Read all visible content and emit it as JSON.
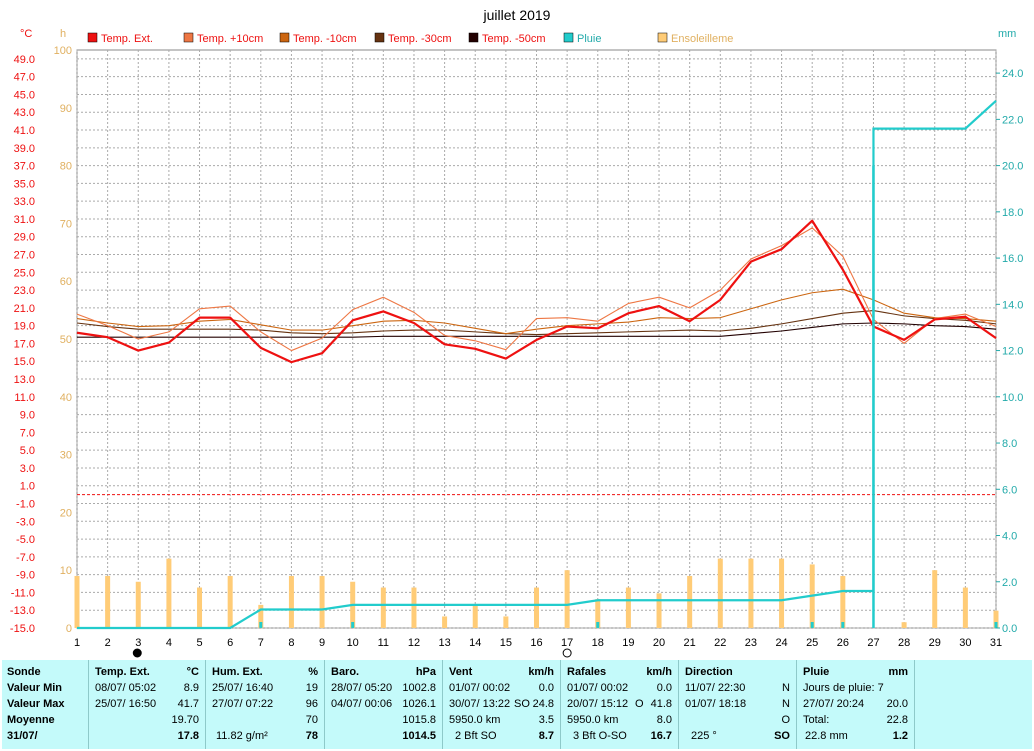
{
  "chart_data": {
    "type": "line",
    "title": "juillet 2019",
    "axes": {
      "temp_unit": "°C",
      "hours_unit": "h",
      "rain_unit": "mm",
      "temp_range": [
        -15,
        50
      ],
      "hours_range": [
        0,
        100
      ],
      "rain_range": [
        0,
        25
      ],
      "temp_ticks": [
        "49.0",
        "47.0",
        "45.0",
        "43.0",
        "41.0",
        "39.0",
        "37.0",
        "35.0",
        "33.0",
        "31.0",
        "29.0",
        "27.0",
        "25.0",
        "23.0",
        "21.0",
        "19.0",
        "17.0",
        "15.0",
        "13.0",
        "11.0",
        "9.0",
        "7.0",
        "5.0",
        "3.0",
        "1.0",
        "-1.0",
        "-3.0",
        "-5.0",
        "-7.0",
        "-9.0",
        "-11.0",
        "-13.0",
        "-15.0"
      ],
      "hours_ticks": [
        "100",
        "90",
        "80",
        "70",
        "60",
        "50",
        "40",
        "30",
        "20",
        "10",
        "0"
      ],
      "rain_ticks": [
        "24.0",
        "22.0",
        "20.0",
        "18.0",
        "16.0",
        "14.0",
        "12.0",
        "10.0",
        "8.0",
        "6.0",
        "4.0",
        "2.0",
        "0.0"
      ],
      "x_ticks": [
        "1",
        "2",
        "3",
        "4",
        "5",
        "6",
        "7",
        "8",
        "9",
        "10",
        "11",
        "12",
        "13",
        "14",
        "15",
        "16",
        "17",
        "18",
        "19",
        "20",
        "21",
        "22",
        "23",
        "24",
        "25",
        "26",
        "27",
        "28",
        "29",
        "30",
        "31"
      ],
      "grid": true,
      "reference_temp": 0
    },
    "legend": [
      "Temp. Ext.",
      "Temp. +10cm",
      "Temp. -10cm",
      "Temp. -30cm",
      "Temp. -50cm",
      "Pluie",
      "Ensoleilleme"
    ],
    "x": [
      1,
      2,
      3,
      4,
      5,
      6,
      7,
      8,
      9,
      10,
      11,
      12,
      13,
      14,
      15,
      16,
      17,
      18,
      19,
      20,
      21,
      22,
      23,
      24,
      25,
      26,
      27,
      28,
      29,
      30,
      31
    ],
    "series": [
      {
        "name": "Temp. Ext.",
        "color": "#ee1111",
        "axis": "temp",
        "values": [
          18.2,
          17.7,
          16.2,
          17.1,
          19.9,
          19.9,
          16.5,
          14.9,
          15.9,
          19.6,
          20.6,
          19.3,
          16.9,
          16.4,
          15.3,
          17.4,
          18.9,
          18.7,
          20.4,
          21.2,
          19.5,
          21.9,
          26.2,
          27.6,
          30.8,
          25.3,
          18.9,
          17.4,
          19.7,
          20.0,
          17.6
        ]
      },
      {
        "name": "Temp. +10cm",
        "color": "#ee7744",
        "axis": "temp",
        "values": [
          20.3,
          19.0,
          17.5,
          18.3,
          20.9,
          21.2,
          18.3,
          16.2,
          17.6,
          20.8,
          22.2,
          20.5,
          17.9,
          17.3,
          16.3,
          19.8,
          19.9,
          19.5,
          21.5,
          22.2,
          21.0,
          23.0,
          26.5,
          28.0,
          30.0,
          26.8,
          19.7,
          17.0,
          19.8,
          20.3,
          18.9
        ]
      },
      {
        "name": "Temp. -10cm",
        "color": "#cc6611",
        "axis": "temp",
        "values": [
          19.8,
          19.3,
          18.9,
          19.0,
          19.5,
          19.7,
          19.1,
          18.5,
          18.5,
          19.0,
          19.5,
          19.6,
          19.3,
          18.7,
          18.1,
          18.6,
          19.0,
          19.2,
          19.4,
          19.9,
          19.8,
          19.9,
          20.9,
          21.9,
          22.7,
          23.1,
          21.9,
          20.4,
          19.9,
          19.8,
          19.5
        ]
      },
      {
        "name": "Temp. -30cm",
        "color": "#663311",
        "axis": "temp",
        "values": [
          19.3,
          18.9,
          18.6,
          18.6,
          18.6,
          18.6,
          18.5,
          18.2,
          18.1,
          18.2,
          18.4,
          18.5,
          18.5,
          18.3,
          18.1,
          18.0,
          18.1,
          18.2,
          18.3,
          18.4,
          18.5,
          18.4,
          18.7,
          19.2,
          19.8,
          20.4,
          20.7,
          20.1,
          19.8,
          19.6,
          19.2
        ]
      },
      {
        "name": "Temp. -50cm",
        "color": "#220000",
        "axis": "temp",
        "values": [
          17.7,
          17.7,
          17.7,
          17.7,
          17.7,
          17.7,
          17.7,
          17.7,
          17.7,
          17.7,
          17.8,
          17.8,
          17.8,
          17.8,
          17.8,
          17.8,
          17.8,
          17.8,
          17.8,
          17.8,
          17.8,
          17.8,
          18.1,
          18.4,
          18.8,
          19.2,
          19.3,
          19.2,
          19.0,
          18.9,
          18.6
        ]
      },
      {
        "name": "Pluie",
        "color": "#22cccc",
        "axis": "rain",
        "values": [
          0.0,
          0.0,
          0.0,
          0.0,
          0.0,
          0.0,
          0.8,
          0.8,
          0.8,
          1.0,
          1.0,
          1.0,
          1.0,
          1.0,
          1.0,
          1.0,
          1.0,
          1.2,
          1.2,
          1.2,
          1.2,
          1.2,
          1.2,
          1.2,
          1.4,
          1.6,
          21.6,
          21.6,
          21.6,
          21.6,
          22.8
        ]
      },
      {
        "name": "Ensoleilleme",
        "color": "#ffcc77",
        "axis": "hours",
        "type": "bar",
        "values": [
          9,
          9,
          8,
          12,
          7,
          9,
          4,
          9,
          9,
          8,
          7,
          7,
          2,
          4,
          2,
          7,
          10,
          5,
          7,
          6,
          9,
          12,
          12,
          12,
          11,
          9,
          0,
          1,
          10,
          7,
          3
        ]
      }
    ],
    "daily_rain_mm": [
      0,
      0,
      0,
      0,
      0,
      0,
      0.8,
      0,
      0,
      0.2,
      0,
      0,
      0,
      0,
      0,
      0,
      0,
      0.2,
      0,
      0,
      0,
      0,
      0,
      0,
      0.2,
      0.2,
      20.0,
      0,
      0,
      0,
      1.2
    ]
  },
  "footer": {
    "sonde": {
      "title": "Sonde",
      "rows": [
        "Valeur Min",
        "Valeur Max",
        "Moyenne",
        "31/07/"
      ]
    },
    "temp": {
      "title": "Temp. Ext.",
      "unit": "°C",
      "min_when": "08/07/  05:02",
      "min": "8.9",
      "max_when": "25/07/  16:50",
      "max": "41.7",
      "avg": "19.70",
      "cur": "17.8"
    },
    "hum": {
      "title": "Hum. Ext.",
      "unit": "%",
      "min_when": "25/07/  16:40",
      "min": "19",
      "max_when": "27/07/  07:22",
      "max": "96",
      "avg": "70",
      "cur_extra": "11.82 g/m²",
      "cur": "78"
    },
    "baro": {
      "title": "Baro.",
      "unit": "hPa",
      "min_when": "28/07/  05:20",
      "min": "1002.8",
      "max_when": "04/07/  00:06",
      "max": "1026.1",
      "avg": "1015.8",
      "cur": "1014.5"
    },
    "vent": {
      "title": "Vent",
      "unit": "km/h",
      "min_when": "01/07/  00:02",
      "min": "0.0",
      "max_when": "30/07/  13:22",
      "max_dir": "SO",
      "max": "24.8",
      "avg_extra": "5950.0 km",
      "avg": "3.5",
      "cur_extra": "2 Bft SO",
      "cur": "8.7"
    },
    "rafales": {
      "title": "Rafales",
      "unit": "km/h",
      "min_when": "01/07/  00:02",
      "min": "0.0",
      "max_when": "20/07/  15:12",
      "max_dir": "O",
      "max": "41.8",
      "avg_extra": "5950.0 km",
      "avg": "8.0",
      "cur_extra": "3 Bft O-SO",
      "cur": "16.7"
    },
    "direction": {
      "title": "Direction",
      "min_when": "11/07/  22:30",
      "min": "N",
      "max_when": "01/07/  18:18",
      "max": "N",
      "avg": "O",
      "cur_extra": "225 °",
      "cur": "SO"
    },
    "pluie": {
      "title": "Pluie",
      "unit": "mm",
      "days_label": "Jours de pluie: 7",
      "max_when": "27/07/  20:24",
      "max": "20.0",
      "total_label": "Total:",
      "total": "22.8",
      "cur_extra": "22.8 mm",
      "cur": "1.2"
    }
  }
}
